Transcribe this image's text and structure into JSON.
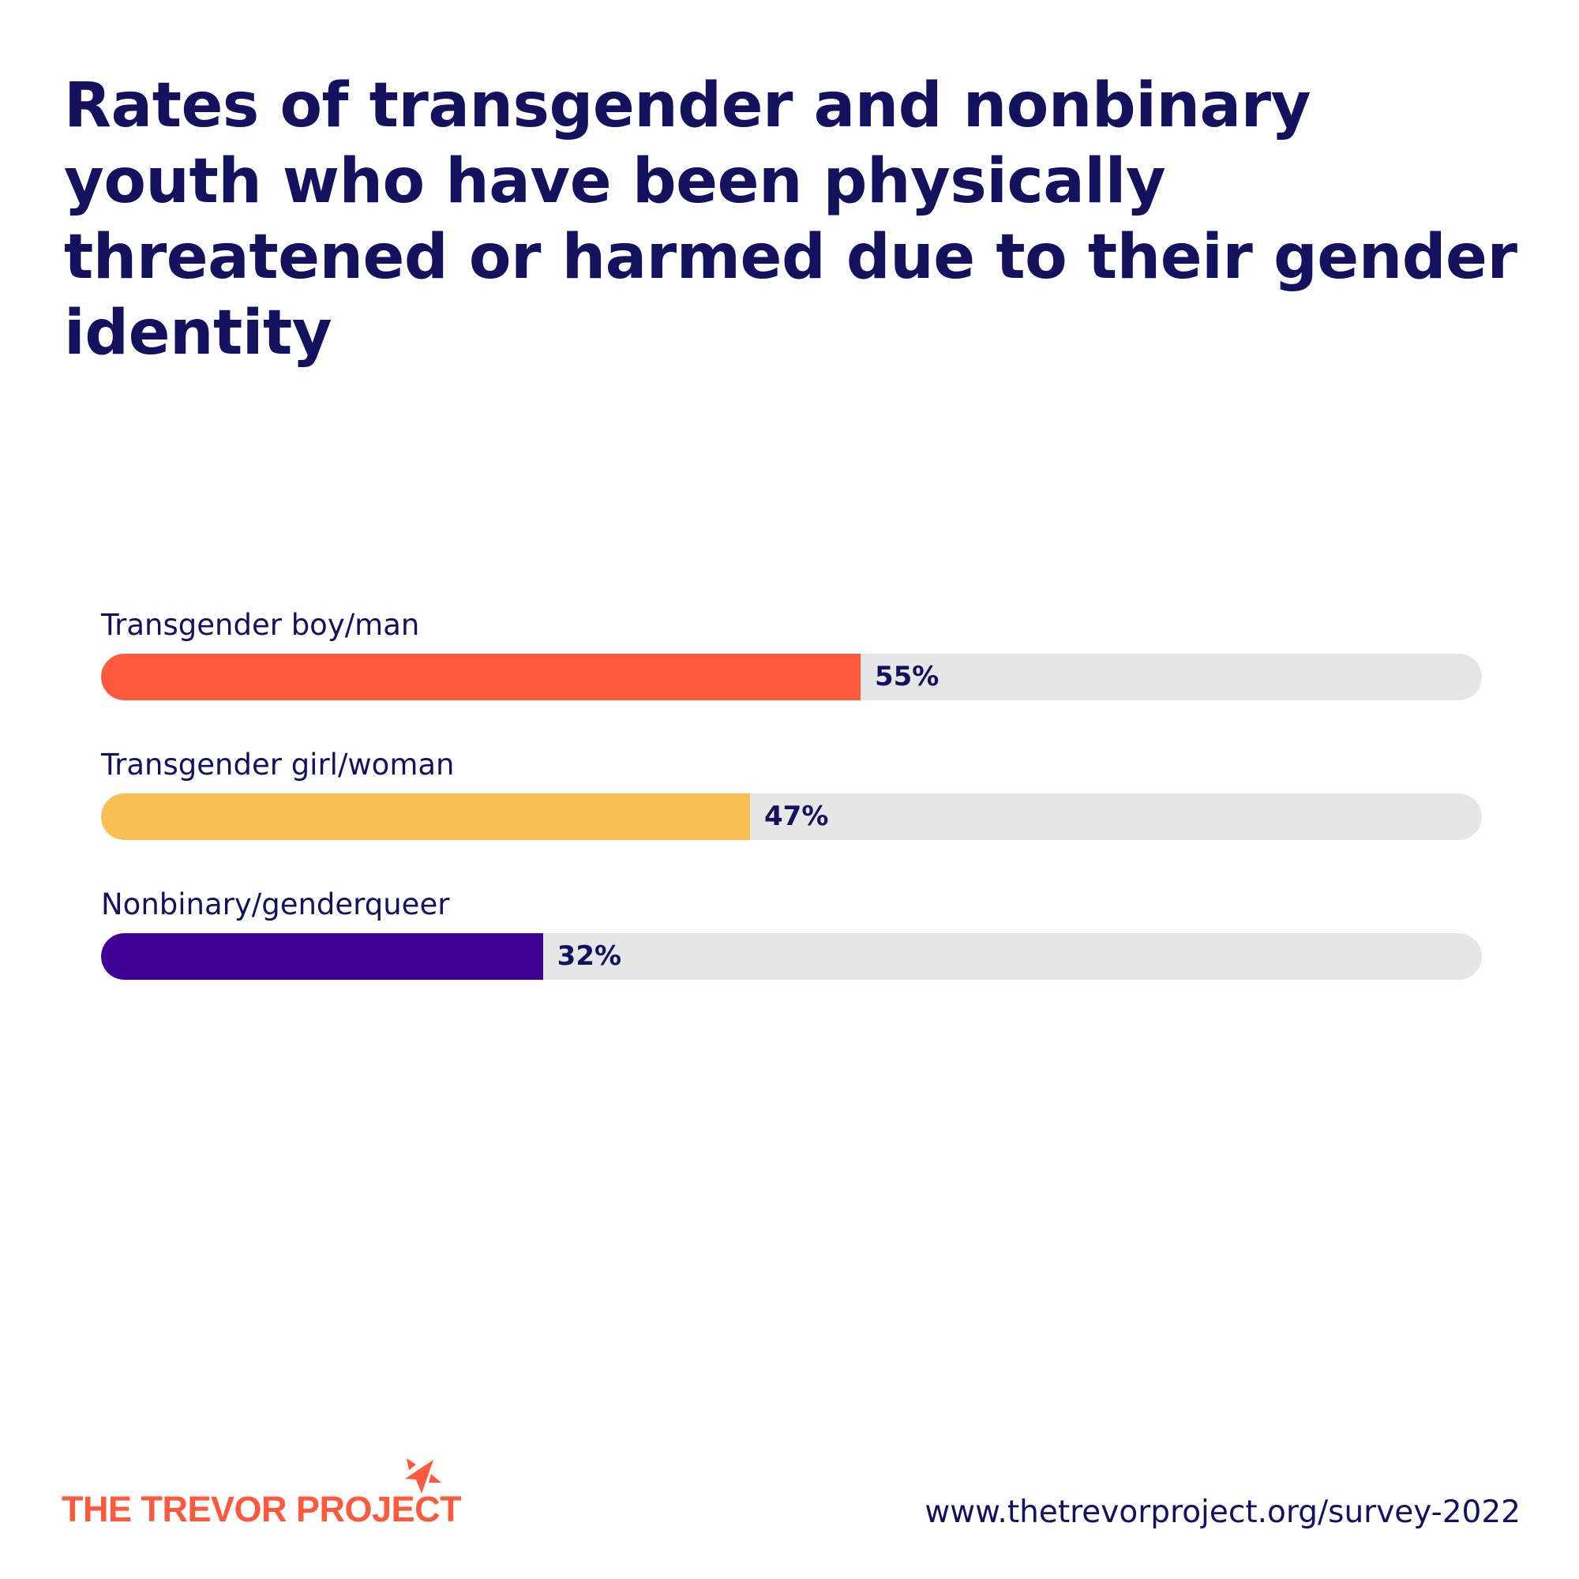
{
  "title": "Rates of transgender and nonbinary youth who have been physically threatened or harmed due to their gender identity",
  "chart_data": {
    "type": "bar",
    "orientation": "horizontal",
    "title": "Rates of transgender and nonbinary youth who have been physically threatened or harmed due to their gender identity",
    "categories": [
      "Transgender boy/man",
      "Transgender girl/woman",
      "Nonbinary/genderqueer"
    ],
    "values": [
      55,
      47,
      32
    ],
    "value_labels": [
      "55%",
      "47%",
      "32%"
    ],
    "colors": [
      "#ff5a3d",
      "#f8bf55",
      "#3f0096"
    ],
    "track_color": "#e6e6e6",
    "xlim": [
      0,
      100
    ],
    "grid": false
  },
  "footer": {
    "logo_text": "THE TREVOR PROJECT",
    "url": "www.thetrevorproject.org/survey-2022",
    "brand_color": "#ff5a3d"
  }
}
